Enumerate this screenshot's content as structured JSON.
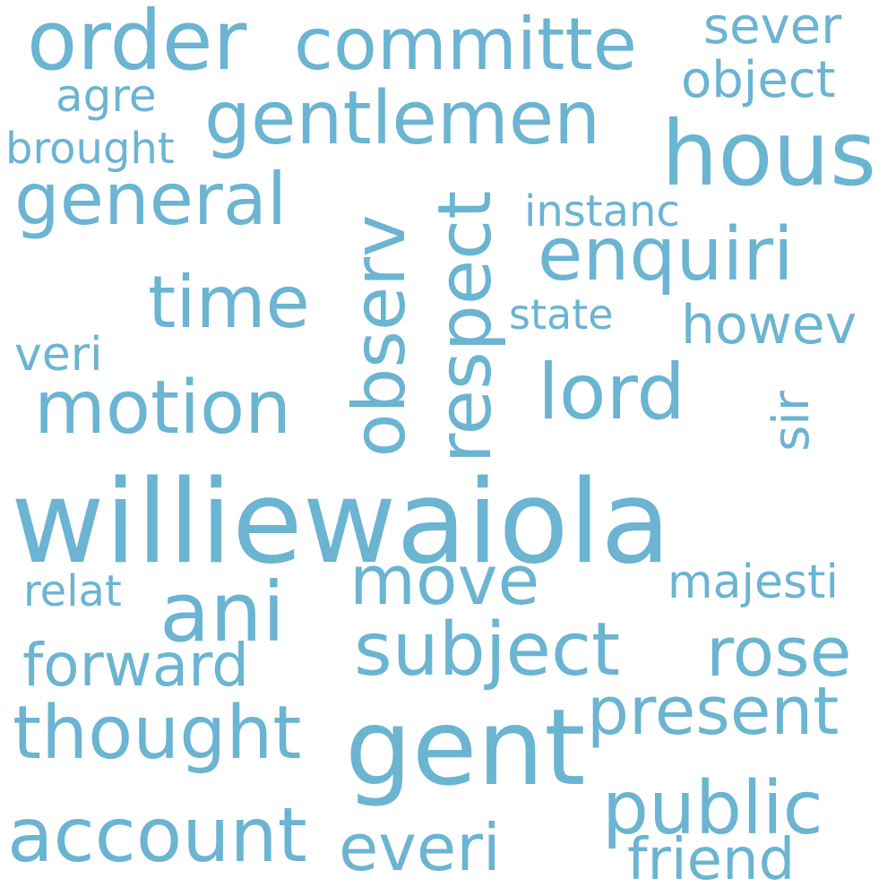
{
  "color": "#6bb4d2",
  "words": {
    "williewaiola": "williewaiola",
    "gent": "gent",
    "hous": "hous",
    "order": "order",
    "committe": "committe",
    "gentlemen": "gentlemen",
    "general": "general",
    "respect": "respect",
    "observ": "observ",
    "enquiri": "enquiri",
    "motion": "motion",
    "time": "time",
    "lord": "lord",
    "ani": "ani",
    "move": "move",
    "subject": "subject",
    "rose": "rose",
    "thought": "thought",
    "present": "present",
    "account": "account",
    "public": "public",
    "everi": "everi",
    "forward": "forward",
    "friend": "friend",
    "sever": "sever",
    "object": "object",
    "agre": "agre",
    "brought": "brought",
    "instanc": "instanc",
    "state": "state",
    "howev": "howev",
    "veri": "veri",
    "sir": "sir",
    "relat": "relat",
    "majesti": "majesti"
  }
}
